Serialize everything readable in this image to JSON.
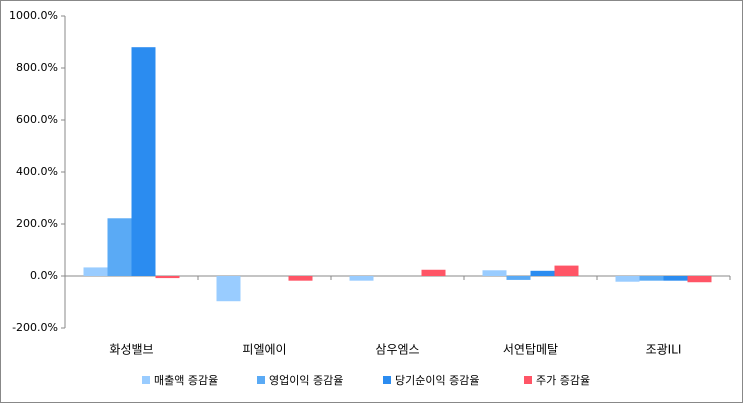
{
  "chart_data": {
    "type": "bar",
    "categories": [
      "화성밸브",
      "피엘에이",
      "삼우엠스",
      "서연탑메탈",
      "조광ILI"
    ],
    "series": [
      {
        "name": "매출액 증감율",
        "color": "#99ccff",
        "values": [
          33,
          -97,
          -18,
          22,
          -22
        ]
      },
      {
        "name": "영업이익 증감율",
        "color": "#5aaaf5",
        "values": [
          222,
          0,
          0,
          -15,
          -18
        ]
      },
      {
        "name": "당기순이익 증감율",
        "color": "#2b8cf0",
        "values": [
          880,
          0,
          0,
          20,
          -18
        ]
      },
      {
        "name": "주가 증감율",
        "color": "#ff5566",
        "values": [
          -8,
          -18,
          24,
          40,
          -24
        ]
      }
    ],
    "ylim": [
      -200,
      1000
    ],
    "yticks": [
      {
        "value": -200,
        "label": "-200.0%"
      },
      {
        "value": 0,
        "label": "0.0%"
      },
      {
        "value": 200,
        "label": "200.0%"
      },
      {
        "value": 400,
        "label": "400.0%"
      },
      {
        "value": 600,
        "label": "600.0%"
      },
      {
        "value": 800,
        "label": "800.0%"
      },
      {
        "value": 1000,
        "label": "1000.0%"
      }
    ],
    "legend": "bottom"
  }
}
